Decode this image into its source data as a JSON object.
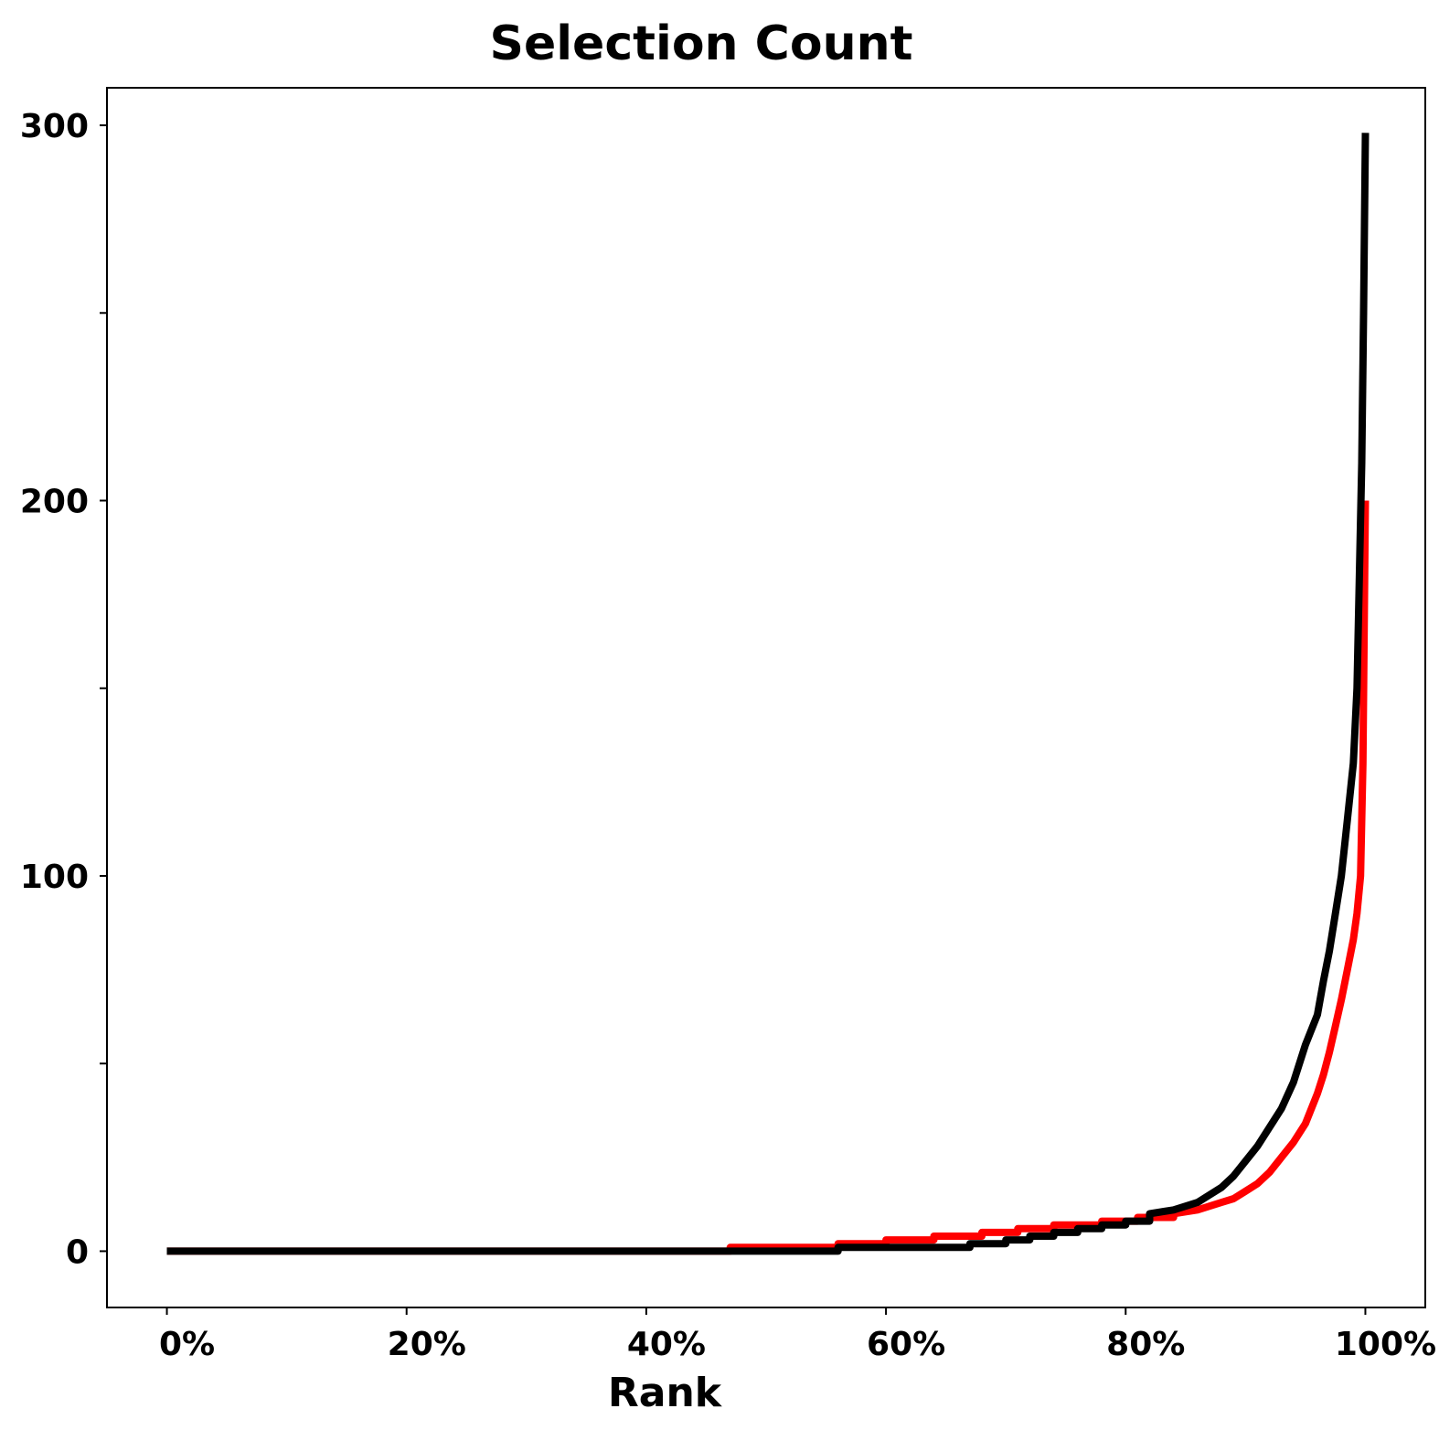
{
  "chart_data": {
    "type": "line",
    "title": "Selection Count",
    "xlabel": "Rank",
    "ylabel": "",
    "xlim": [
      -5,
      105
    ],
    "ylim": [
      -15,
      310
    ],
    "x_ticks": [
      0,
      20,
      40,
      60,
      80,
      100
    ],
    "x_tick_labels": [
      "0%",
      "20%",
      "40%",
      "60%",
      "80%",
      "100%"
    ],
    "y_ticks": [
      0,
      50,
      100,
      150,
      200,
      250,
      300
    ],
    "y_tick_labels": [
      "0",
      "",
      "100",
      "",
      "200",
      "",
      "300"
    ],
    "grid": false,
    "legend": "none",
    "series": [
      {
        "color": "#ff0000",
        "x": [
          0,
          47,
          47,
          56,
          56,
          60,
          60,
          64,
          64,
          68,
          68,
          71,
          71,
          74,
          74,
          78,
          78,
          81,
          81,
          84,
          84,
          86,
          87,
          88,
          89,
          90,
          91,
          92,
          93,
          94,
          95,
          96,
          96.5,
          97,
          97.5,
          98,
          98.5,
          99,
          99.3,
          99.6,
          99.8,
          100
        ],
        "y": [
          0,
          0,
          1,
          1,
          2,
          2,
          3,
          3,
          4,
          4,
          5,
          5,
          6,
          6,
          7,
          7,
          8,
          8,
          9,
          9,
          10,
          11,
          12,
          13,
          14,
          16,
          18,
          21,
          25,
          29,
          34,
          42,
          47,
          53,
          60,
          67,
          75,
          83,
          90,
          100,
          130,
          200
        ]
      },
      {
        "color": "#000000",
        "x": [
          0,
          56,
          56,
          67,
          67,
          70,
          70,
          72,
          72,
          74,
          74,
          76,
          76,
          78,
          78,
          80,
          80,
          82,
          82,
          84,
          85,
          86,
          87,
          88,
          89,
          90,
          91,
          92,
          93,
          94,
          95,
          96,
          96.5,
          97,
          97.5,
          98,
          98.5,
          99,
          99.3,
          99.5,
          99.7,
          99.85,
          100
        ],
        "y": [
          0,
          0,
          1,
          1,
          2,
          2,
          3,
          3,
          4,
          4,
          5,
          5,
          6,
          6,
          7,
          7,
          8,
          8,
          10,
          11,
          12,
          13,
          15,
          17,
          20,
          24,
          28,
          33,
          38,
          45,
          55,
          63,
          72,
          80,
          90,
          100,
          115,
          130,
          150,
          180,
          210,
          250,
          298
        ]
      }
    ]
  }
}
